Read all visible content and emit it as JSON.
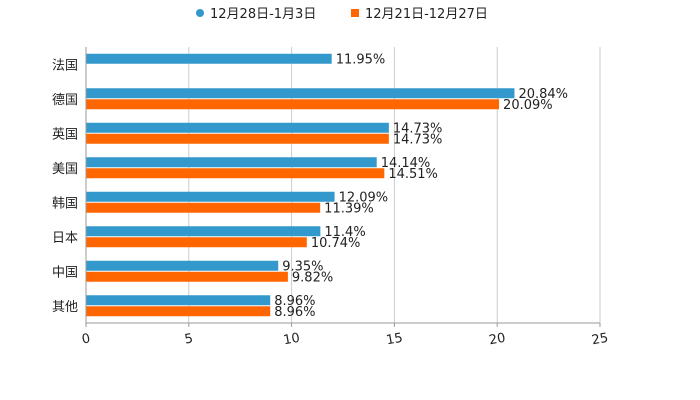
{
  "chart_data": {
    "type": "bar",
    "orientation": "horizontal",
    "title": "",
    "xlabel": "",
    "ylabel": "",
    "xlim": [
      0,
      25
    ],
    "x_ticks": [
      "0",
      "5",
      "10",
      "15",
      "20",
      "25"
    ],
    "x_tick_values": [
      0,
      5,
      10,
      15,
      20,
      25
    ],
    "categories": [
      "法国",
      "德国",
      "英国",
      "美国",
      "韩国",
      "日本",
      "中国",
      "其他"
    ],
    "series": [
      {
        "name": "12月28日-1月3日",
        "color": "#3399cc",
        "values": [
          11.95,
          20.84,
          14.73,
          14.14,
          12.09,
          11.4,
          9.35,
          8.96
        ],
        "labels": [
          "11.95%",
          "20.84%",
          "14.73%",
          "14.14%",
          "12.09%",
          "11.4%",
          "9.35%",
          "8.96%"
        ]
      },
      {
        "name": "12月21日-12月27日",
        "color": "#ff6600",
        "values": [
          null,
          20.09,
          14.73,
          14.51,
          11.39,
          10.74,
          9.82,
          8.96
        ],
        "labels": [
          "",
          "20.09%",
          "14.73%",
          "14.51%",
          "11.39%",
          "10.74%",
          "9.82%",
          "8.96%"
        ]
      }
    ],
    "legend_position": "top",
    "grid": true
  }
}
